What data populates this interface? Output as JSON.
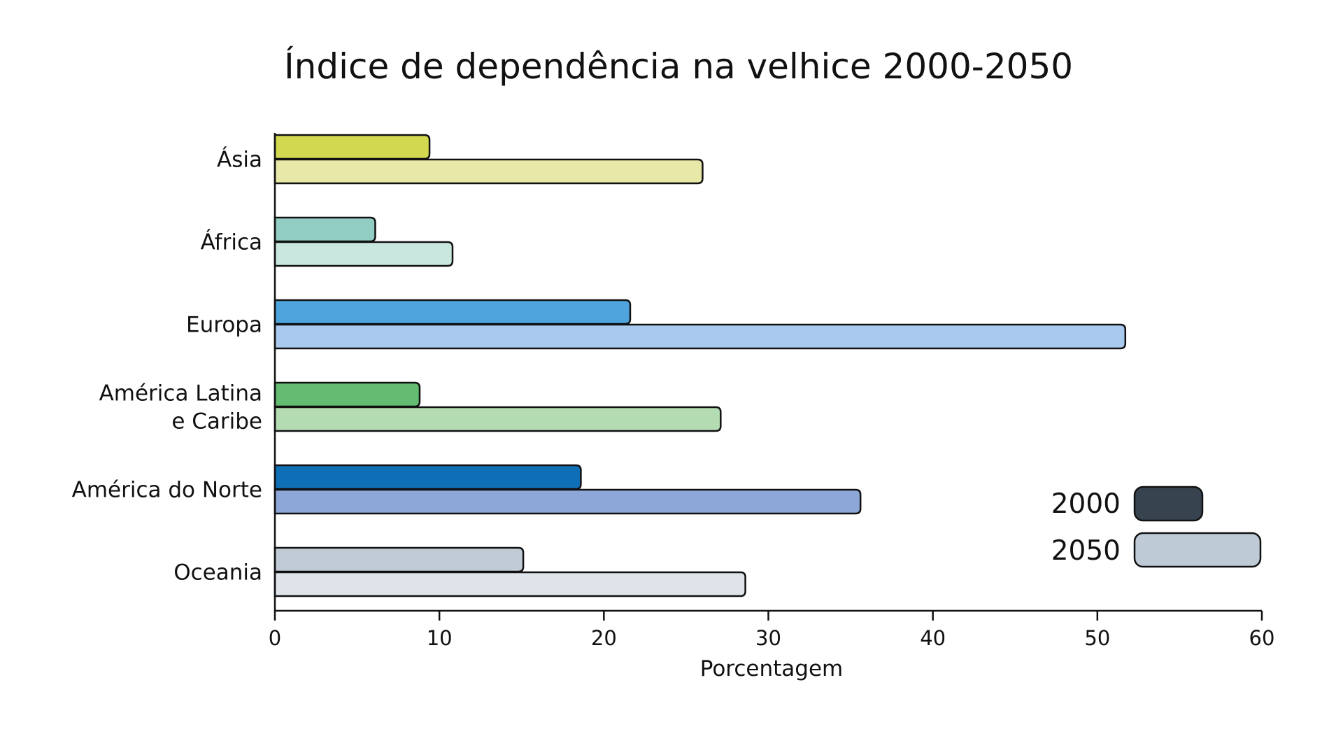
{
  "chart_data": {
    "type": "bar",
    "orientation": "horizontal",
    "title": "Índice de dependência na velhice 2000-2050",
    "xlabel": "Porcentagem",
    "ylabel": "",
    "xlim": [
      0,
      60
    ],
    "xticks": [
      "0",
      "10",
      "20",
      "30",
      "40",
      "50",
      "60"
    ],
    "categories": [
      "Ásia",
      "África",
      "Europa",
      "América Latina e Caribe",
      "América do Norte",
      "Oceania"
    ],
    "category_lines": [
      [
        "Ásia"
      ],
      [
        "África"
      ],
      [
        "Europa"
      ],
      [
        "América Latina",
        "e Caribe"
      ],
      [
        "América do Norte"
      ],
      [
        "Oceania"
      ]
    ],
    "series": [
      {
        "name": "2000",
        "values": [
          9.4,
          6.1,
          21.6,
          8.8,
          18.6,
          15.1
        ]
      },
      {
        "name": "2050",
        "values": [
          26.0,
          10.8,
          51.7,
          27.1,
          35.6,
          28.6
        ]
      }
    ],
    "bar_colors": {
      "2000": [
        "#d2d951",
        "#91cdc2",
        "#50a4dc",
        "#64bc72",
        "#0f6fb6",
        "#c0cbd5"
      ],
      "2050": [
        "#e8e9a9",
        "#c9e6df",
        "#a9caee",
        "#b3dcb3",
        "#8da7d8",
        "#dfe4ea"
      ]
    },
    "legend": {
      "placement": "bottom-right",
      "entries": [
        {
          "label": "2000",
          "color": "#37444f"
        },
        {
          "label": "2050",
          "color": "#becbd6"
        }
      ]
    },
    "grid": false
  }
}
